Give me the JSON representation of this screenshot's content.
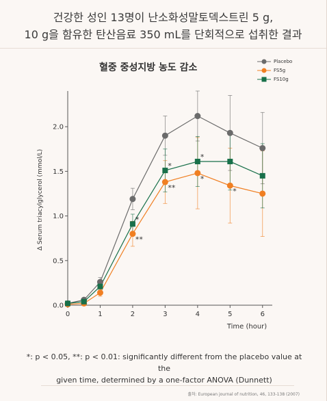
{
  "header": {
    "line1": "건강한 성인 13명이 난소화성말토덱스트린 5 g,",
    "line2": "10 g을 함유한 탄산음료 350 mL를 단회적으로 섭취한 결과"
  },
  "colors": {
    "background": "#fbf7f4",
    "placebo": "#6b6b6b",
    "fs5g": "#f07f22",
    "fs10g": "#18704a",
    "axis": "#555555"
  },
  "footnote": {
    "line1": "*: p < 0.05, **: p < 0.01: significantly different from the placebo value at the",
    "line2": "given time, determined by a one-factor ANOVA (Dunnett)"
  },
  "source": "출처: European journal of nutrition, 46, 133-138 (2007)",
  "chart_data": {
    "type": "line",
    "title": "혈중 중성지방 농도 감소",
    "xlabel": "Time (hour)",
    "ylabel": "Δ Serum triacylglycerol (mmol/L)",
    "x": [
      0,
      0.5,
      1,
      2,
      3,
      4,
      5,
      6
    ],
    "xticks": [
      0,
      1,
      2,
      3,
      4,
      5,
      6
    ],
    "yticks": [
      0.0,
      0.5,
      1.0,
      1.5,
      2.0
    ],
    "ytick_labels": [
      "0.0",
      "0.5",
      "1.0",
      "1.5",
      "2.0"
    ],
    "xlim": [
      0,
      6.3
    ],
    "ylim": [
      0,
      2.4
    ],
    "legend_position": "top-right",
    "grid": false,
    "series": [
      {
        "name": "Placebo",
        "marker": "circle",
        "color": "#6b6b6b",
        "values": [
          0.02,
          0.06,
          0.26,
          1.19,
          1.9,
          2.12,
          1.93,
          1.76
        ],
        "error": [
          0,
          0.02,
          0.05,
          0.12,
          0.22,
          0.28,
          0.42,
          0.4
        ],
        "annotations": [
          "",
          "",
          "",
          "",
          "",
          "",
          "",
          ""
        ]
      },
      {
        "name": "FS5g",
        "marker": "circle",
        "color": "#f07f22",
        "values": [
          0.01,
          0.02,
          0.14,
          0.8,
          1.38,
          1.48,
          1.34,
          1.25
        ],
        "error": [
          0,
          0.01,
          0.04,
          0.14,
          0.24,
          0.4,
          0.42,
          0.48
        ],
        "annotations": [
          "",
          "",
          "",
          "**",
          "**",
          "*",
          "*",
          ""
        ]
      },
      {
        "name": "FS10g",
        "marker": "square",
        "color": "#18704a",
        "values": [
          0.02,
          0.04,
          0.21,
          0.91,
          1.51,
          1.61,
          1.61,
          1.45
        ],
        "error": [
          0,
          0.01,
          0.04,
          0.11,
          0.24,
          0.28,
          0.32,
          0.36
        ],
        "annotations": [
          "",
          "",
          "",
          "*",
          "*",
          "*",
          "",
          ""
        ]
      }
    ]
  }
}
